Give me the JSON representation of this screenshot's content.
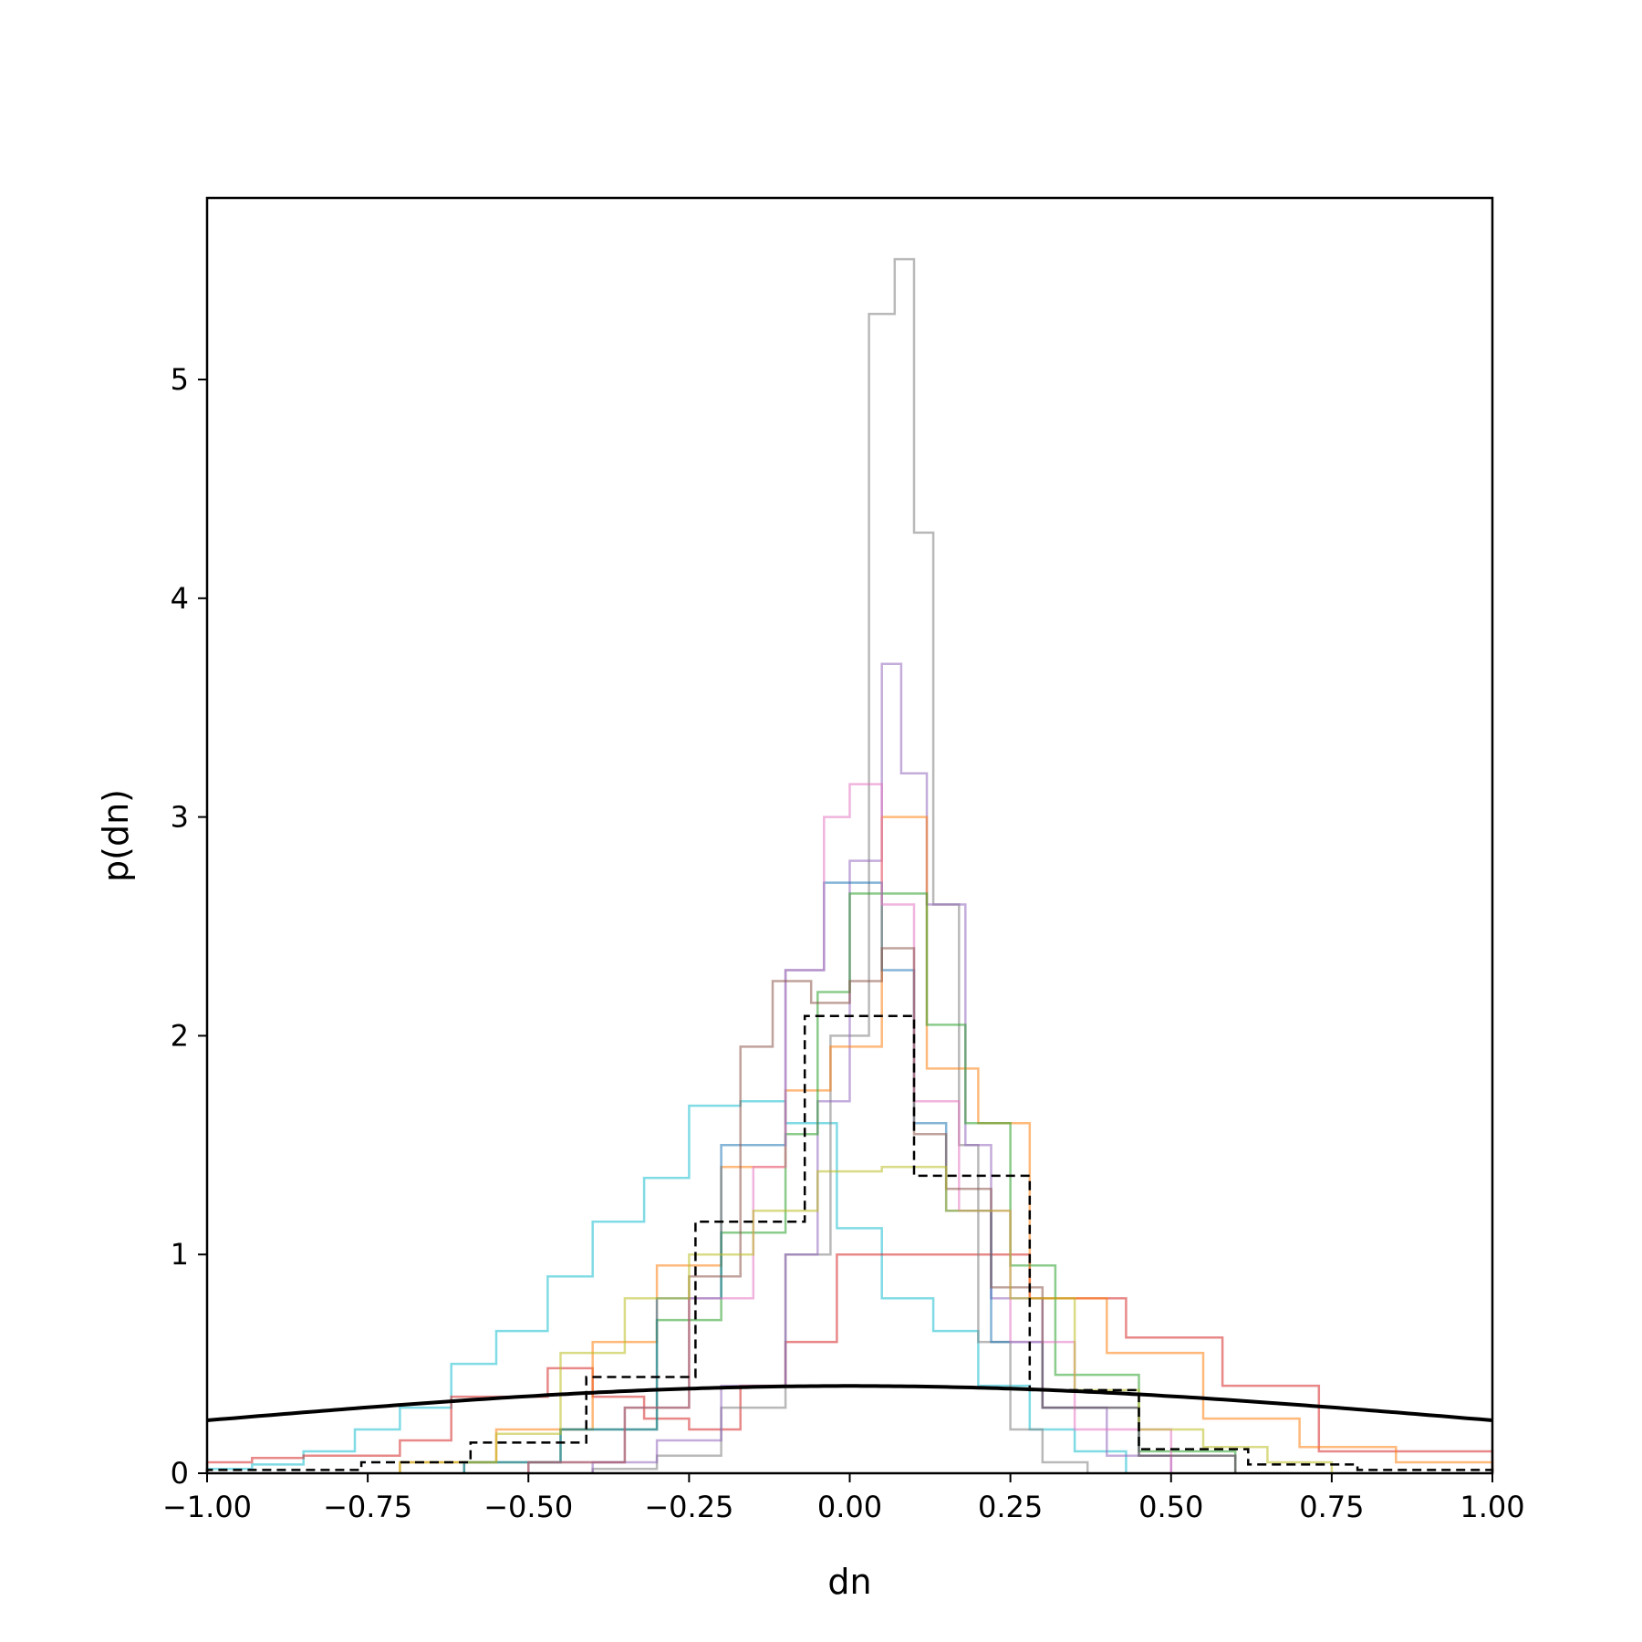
{
  "chart_data": {
    "type": "histogram",
    "title": "",
    "xlabel": "dn",
    "ylabel": "p(dn)",
    "xlim": [
      -1.0,
      1.0
    ],
    "ylim": [
      0,
      5.83
    ],
    "x_ticks": [
      -1.0,
      -0.75,
      -0.5,
      -0.25,
      0.0,
      0.25,
      0.5,
      0.75,
      1.0
    ],
    "x_tick_labels": [
      "−1.00",
      "−0.75",
      "−0.50",
      "−0.25",
      "0.00",
      "0.25",
      "0.50",
      "0.75",
      "1.00"
    ],
    "y_ticks": [
      0,
      1,
      2,
      3,
      4,
      5
    ],
    "y_tick_labels": [
      "0",
      "1",
      "2",
      "3",
      "4",
      "5"
    ],
    "grid": false,
    "legend": false,
    "series": [
      {
        "color": "#17becf",
        "style": "step",
        "alpha": 0.55,
        "edges": [
          -1.0,
          -0.93,
          -0.85,
          -0.77,
          -0.7,
          -0.62,
          -0.55,
          -0.47,
          -0.4,
          -0.32,
          -0.25,
          -0.17,
          -0.1,
          -0.02,
          0.05,
          0.13,
          0.2,
          0.28,
          0.35,
          0.43
        ],
        "values": [
          0.02,
          0.04,
          0.1,
          0.2,
          0.3,
          0.5,
          0.65,
          0.9,
          1.15,
          1.35,
          1.68,
          1.7,
          1.6,
          1.12,
          0.8,
          0.65,
          0.4,
          0.2,
          0.1
        ]
      },
      {
        "color": "#d62728",
        "style": "step",
        "alpha": 0.55,
        "edges": [
          -1.0,
          -0.93,
          -0.85,
          -0.7,
          -0.62,
          -0.47,
          -0.4,
          -0.32,
          -0.25,
          -0.17,
          -0.1,
          -0.02,
          0.13,
          0.28,
          0.43,
          0.58,
          0.73,
          1.0
        ],
        "values": [
          0.05,
          0.07,
          0.08,
          0.15,
          0.35,
          0.48,
          0.35,
          0.25,
          0.2,
          0.4,
          0.6,
          1.0,
          1.0,
          0.8,
          0.62,
          0.4,
          0.1
        ]
      },
      {
        "color": "#7f7f7f",
        "style": "step",
        "alpha": 0.55,
        "edges": [
          -0.4,
          -0.3,
          -0.2,
          -0.1,
          -0.03,
          0.03,
          0.07,
          0.1,
          0.13,
          0.17,
          0.2,
          0.25,
          0.3,
          0.37
        ],
        "values": [
          0.02,
          0.08,
          0.3,
          1.0,
          2.0,
          5.3,
          5.55,
          4.3,
          2.6,
          1.5,
          0.6,
          0.2,
          0.05
        ]
      },
      {
        "color": "#9467bd",
        "style": "step",
        "alpha": 0.55,
        "edges": [
          -0.4,
          -0.3,
          -0.2,
          -0.1,
          -0.05,
          0.0,
          0.05,
          0.08,
          0.12,
          0.18,
          0.22,
          0.3,
          0.4,
          0.5
        ],
        "values": [
          0.05,
          0.15,
          0.4,
          1.0,
          1.7,
          2.8,
          3.7,
          3.2,
          2.6,
          1.5,
          0.8,
          0.3,
          0.08
        ]
      },
      {
        "color": "#ff7f0e",
        "style": "step",
        "alpha": 0.55,
        "edges": [
          -0.7,
          -0.55,
          -0.4,
          -0.3,
          -0.2,
          -0.1,
          -0.03,
          0.05,
          0.12,
          0.2,
          0.28,
          0.4,
          0.55,
          0.7,
          0.85,
          1.0
        ],
        "values": [
          0.05,
          0.2,
          0.6,
          0.95,
          1.4,
          1.75,
          1.95,
          3.0,
          1.85,
          1.6,
          0.8,
          0.55,
          0.25,
          0.12,
          0.05
        ]
      },
      {
        "color": "#2ca02c",
        "style": "step",
        "alpha": 0.55,
        "edges": [
          -0.6,
          -0.45,
          -0.3,
          -0.2,
          -0.1,
          -0.05,
          0.0,
          0.06,
          0.12,
          0.18,
          0.25,
          0.32,
          0.45,
          0.6
        ],
        "values": [
          0.05,
          0.2,
          0.7,
          1.1,
          1.55,
          2.2,
          2.65,
          2.65,
          2.05,
          1.6,
          0.95,
          0.45,
          0.1
        ]
      },
      {
        "color": "#1f77b4",
        "style": "step",
        "alpha": 0.55,
        "edges": [
          -0.6,
          -0.45,
          -0.3,
          -0.2,
          -0.1,
          -0.04,
          0.0,
          0.05,
          0.1,
          0.15,
          0.22,
          0.3,
          0.45,
          0.6
        ],
        "values": [
          0.05,
          0.2,
          0.8,
          1.5,
          2.3,
          2.7,
          2.7,
          2.3,
          1.6,
          1.2,
          0.6,
          0.3,
          0.08
        ]
      },
      {
        "color": "#e377c2",
        "style": "step",
        "alpha": 0.55,
        "edges": [
          -0.5,
          -0.35,
          -0.25,
          -0.15,
          -0.1,
          -0.04,
          0.0,
          0.05,
          0.1,
          0.17,
          0.25,
          0.35,
          0.5
        ],
        "values": [
          0.05,
          0.3,
          0.8,
          1.4,
          2.3,
          3.0,
          3.15,
          2.6,
          1.7,
          1.2,
          0.6,
          0.2
        ]
      },
      {
        "color": "#8c564b",
        "style": "step",
        "alpha": 0.55,
        "edges": [
          -0.5,
          -0.35,
          -0.25,
          -0.17,
          -0.12,
          -0.06,
          0.0,
          0.05,
          0.1,
          0.15,
          0.22,
          0.3,
          0.45,
          0.6
        ],
        "values": [
          0.05,
          0.3,
          0.9,
          1.95,
          2.25,
          2.15,
          2.25,
          2.4,
          1.55,
          1.3,
          0.85,
          0.3,
          0.08
        ]
      },
      {
        "color": "#bcbd22",
        "style": "step",
        "alpha": 0.55,
        "edges": [
          -0.7,
          -0.55,
          -0.45,
          -0.35,
          -0.25,
          -0.15,
          -0.05,
          0.05,
          0.15,
          0.25,
          0.35,
          0.45,
          0.55,
          0.65,
          0.75
        ],
        "values": [
          0.05,
          0.18,
          0.55,
          0.8,
          1.0,
          1.2,
          1.38,
          1.4,
          1.2,
          0.8,
          0.38,
          0.2,
          0.12,
          0.05
        ]
      },
      {
        "color": "#000000",
        "style": "dashed-step",
        "alpha": 1.0,
        "edges": [
          -1.0,
          -0.76,
          -0.59,
          -0.41,
          -0.24,
          -0.07,
          0.1,
          0.28,
          0.45,
          0.62,
          0.79,
          1.0
        ],
        "values": [
          0.015,
          0.05,
          0.14,
          0.44,
          1.15,
          2.09,
          1.36,
          0.38,
          0.11,
          0.04,
          0.015
        ]
      },
      {
        "color": "#000000",
        "style": "line",
        "alpha": 1.0,
        "function": "gaussian",
        "mu": 0.0,
        "sigma": 1.0
      }
    ]
  }
}
